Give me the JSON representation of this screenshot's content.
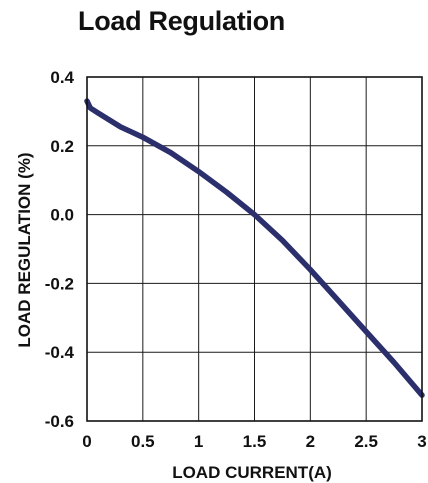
{
  "chart_data": {
    "type": "line",
    "title": "Load Regulation",
    "xlabel": "LOAD CURRENT(A)",
    "ylabel": "LOAD REGULATION  (%)",
    "xlim": [
      0,
      3
    ],
    "ylim": [
      -0.6,
      0.4
    ],
    "x_ticks": [
      0,
      0.5,
      1,
      1.5,
      2,
      2.5,
      3
    ],
    "x_tick_labels": [
      "0",
      "0.5",
      "1",
      "1.5",
      "2",
      "2.5",
      "3"
    ],
    "y_ticks": [
      0.4,
      0.2,
      0.0,
      -0.2,
      -0.4,
      -0.6
    ],
    "y_tick_labels": [
      "0.4",
      "0.2",
      "0.0",
      "-0.2",
      "-0.4",
      "-0.6"
    ],
    "grid": true,
    "series": [
      {
        "color": "#2b2f6b",
        "x": [
          0.0,
          0.03,
          0.1,
          0.3,
          0.5,
          0.75,
          1.0,
          1.25,
          1.5,
          1.75,
          2.0,
          2.25,
          2.5,
          2.75,
          3.0
        ],
        "y": [
          0.33,
          0.31,
          0.295,
          0.255,
          0.225,
          0.18,
          0.125,
          0.065,
          0.0,
          -0.075,
          -0.16,
          -0.25,
          -0.34,
          -0.43,
          -0.525
        ]
      }
    ]
  }
}
